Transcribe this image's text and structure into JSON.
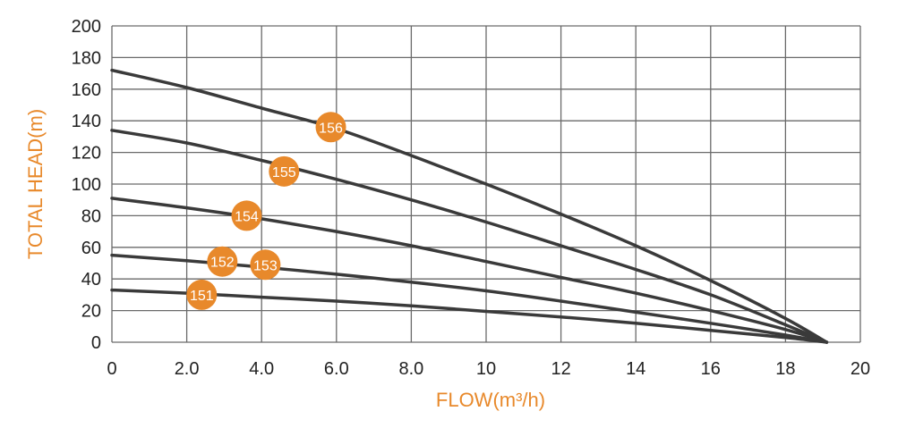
{
  "chart_data": {
    "type": "line",
    "xlabel": "FLOW(m³/h)",
    "ylabel": "TOTAL HEAD(m)",
    "xlim": [
      0,
      20
    ],
    "ylim": [
      0,
      200
    ],
    "grid": true,
    "x_ticks": [
      "0",
      "2.0",
      "4.0",
      "6.0",
      "8.0",
      "10",
      "12",
      "14",
      "16",
      "18",
      "20"
    ],
    "y_ticks": [
      "0",
      "20",
      "40",
      "60",
      "80",
      "100",
      "120",
      "140",
      "160",
      "180",
      "200"
    ],
    "series": [
      {
        "name": "156",
        "label_x": 5.85,
        "points": [
          [
            0,
            172
          ],
          [
            2,
            161
          ],
          [
            4,
            148
          ],
          [
            6,
            135
          ],
          [
            8,
            118
          ],
          [
            10,
            100
          ],
          [
            12,
            81
          ],
          [
            14,
            61
          ],
          [
            16,
            39
          ],
          [
            18,
            15
          ],
          [
            19.1,
            0
          ]
        ]
      },
      {
        "name": "155",
        "label_x": 4.6,
        "points": [
          [
            0,
            134
          ],
          [
            2,
            126
          ],
          [
            4,
            115
          ],
          [
            6,
            103
          ],
          [
            8,
            90
          ],
          [
            10,
            76
          ],
          [
            12,
            61
          ],
          [
            14,
            46
          ],
          [
            16,
            30
          ],
          [
            18,
            11
          ],
          [
            19.1,
            0
          ]
        ]
      },
      {
        "name": "154",
        "label_x": 3.6,
        "points": [
          [
            0,
            91
          ],
          [
            2,
            85
          ],
          [
            4,
            78
          ],
          [
            6,
            70
          ],
          [
            8,
            61
          ],
          [
            10,
            51
          ],
          [
            12,
            41
          ],
          [
            14,
            31
          ],
          [
            16,
            20
          ],
          [
            18,
            8
          ],
          [
            19.1,
            0
          ]
        ]
      },
      {
        "name": "152",
        "label_x": 2.95,
        "points": [
          [
            0,
            55
          ],
          [
            2,
            51.5
          ],
          [
            4,
            47.5
          ],
          [
            6,
            43
          ],
          [
            8,
            38
          ],
          [
            10,
            32.5
          ],
          [
            12,
            26
          ],
          [
            14,
            19
          ],
          [
            16,
            12
          ],
          [
            18,
            4.5
          ],
          [
            19.1,
            0
          ]
        ]
      },
      {
        "name": "151",
        "label_x": 2.4,
        "points": [
          [
            0,
            33
          ],
          [
            2,
            31
          ],
          [
            4,
            28.5
          ],
          [
            6,
            26
          ],
          [
            8,
            23
          ],
          [
            10,
            19.5
          ],
          [
            12,
            16
          ],
          [
            14,
            12
          ],
          [
            16,
            7.5
          ],
          [
            18,
            3
          ],
          [
            19.1,
            0
          ]
        ]
      }
    ],
    "badges": [
      {
        "text": "156",
        "x": 5.85,
        "y": 136
      },
      {
        "text": "155",
        "x": 4.6,
        "y": 108
      },
      {
        "text": "154",
        "x": 3.6,
        "y": 80
      },
      {
        "text": "152",
        "x": 2.95,
        "y": 51
      },
      {
        "text": "153",
        "x": 4.1,
        "y": 49
      },
      {
        "text": "151",
        "x": 2.4,
        "y": 30
      }
    ],
    "colors": {
      "line": "#3a3a3a",
      "grid": "#6a6a6a",
      "badge": "#e8892b",
      "axis_title": "#e8892b"
    }
  }
}
